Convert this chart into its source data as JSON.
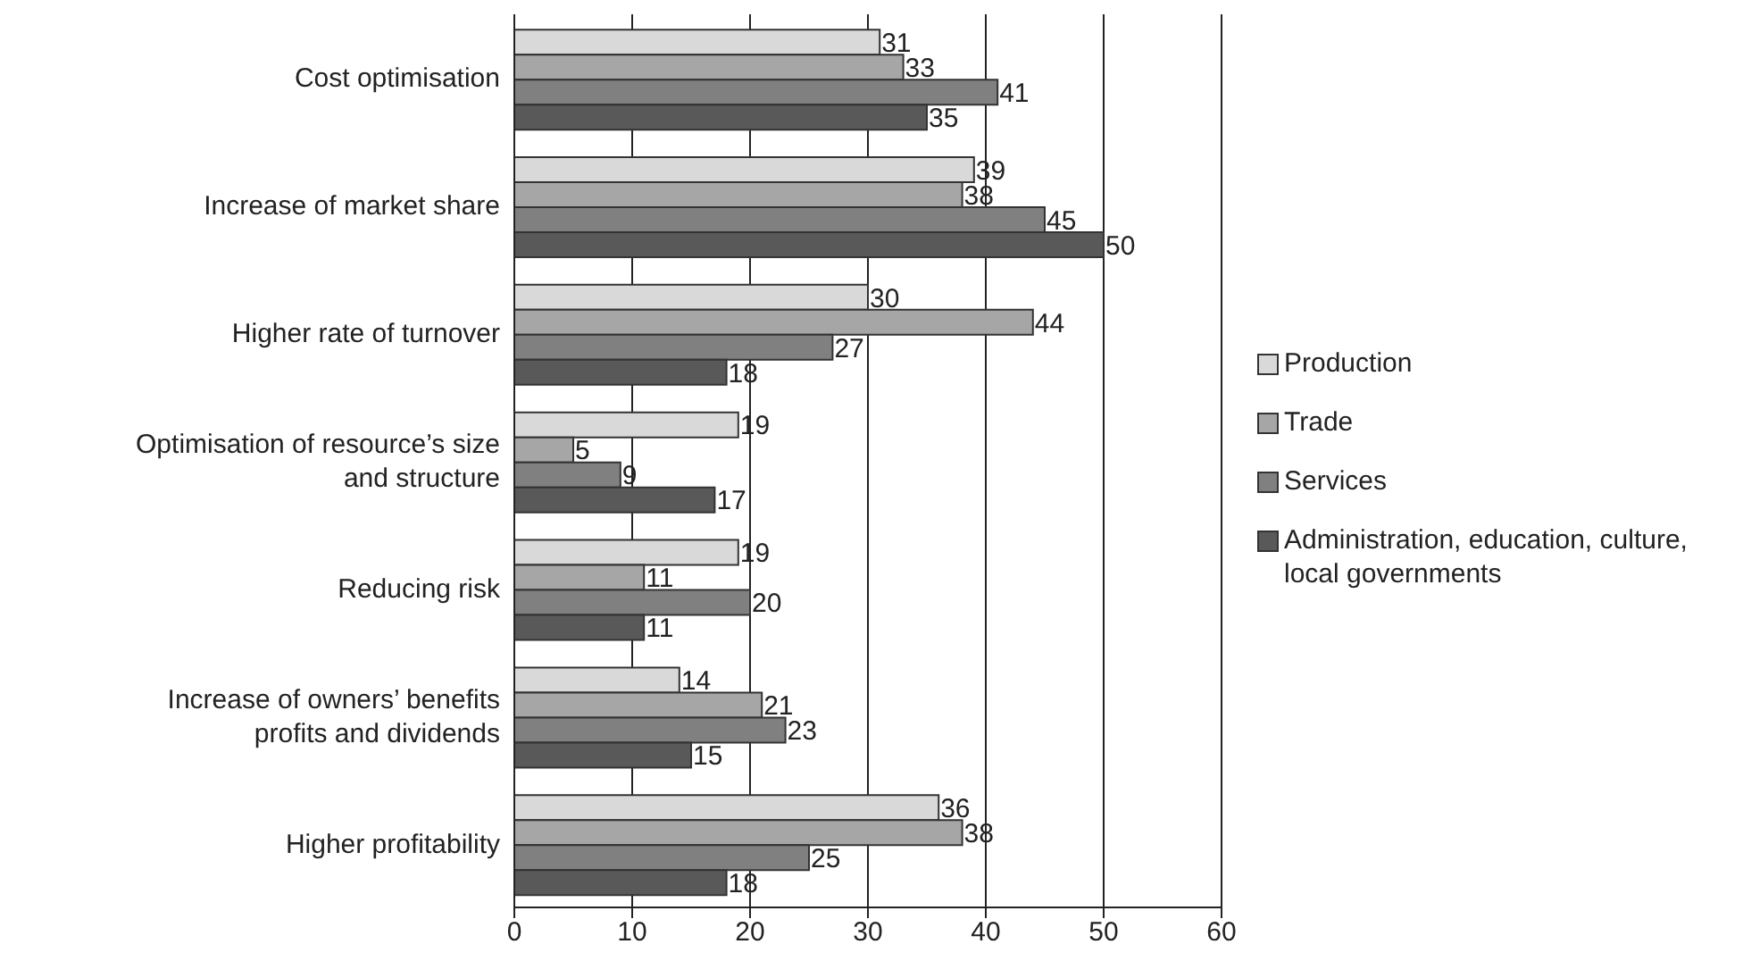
{
  "chart_data": {
    "type": "bar",
    "orientation": "horizontal",
    "categories": [
      "Cost optimisation",
      "Increase of market share",
      "Higher rate of turnover",
      "Optimisation of resource’s size and structure",
      "Reducing risk",
      "Increase of owners’ benefits profits and dividends",
      "Higher profitability"
    ],
    "series": [
      {
        "name": "Production",
        "color": "#d9d9d9",
        "values": [
          31,
          39,
          30,
          19,
          19,
          14,
          36
        ]
      },
      {
        "name": "Trade",
        "color": "#a6a6a6",
        "values": [
          33,
          38,
          44,
          5,
          11,
          21,
          38
        ]
      },
      {
        "name": "Services",
        "color": "#808080",
        "values": [
          41,
          45,
          27,
          9,
          20,
          23,
          25
        ]
      },
      {
        "name": "Administration, education, culture, local governments",
        "color": "#595959",
        "values": [
          35,
          50,
          18,
          17,
          11,
          15,
          18
        ]
      }
    ],
    "xlim": [
      0,
      60
    ],
    "xticks": [
      0,
      10,
      20,
      30,
      40,
      50,
      60
    ],
    "grid": "x",
    "legend": "right",
    "data_labels": true
  }
}
